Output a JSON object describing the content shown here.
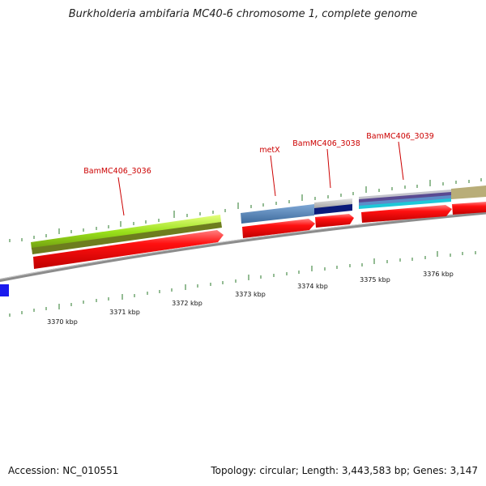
{
  "title": "Burkholderia ambifaria MC40-6 chromosome 1, complete genome",
  "footer": {
    "accession": "Accession: NC_010551",
    "topology": "Topology: circular; Length: 3,443,583 bp; Genes: 3,147"
  },
  "colors": {
    "backbone": "#8c8c8c",
    "cds_forward": "#ff0000",
    "tick": "#2a7a2a",
    "label": "#cc0000"
  },
  "scale_labels": [
    "3370 kbp",
    "3371 kbp",
    "3372 kbp",
    "3373 kbp",
    "3374 kbp",
    "3375 kbp",
    "3376 kbp"
  ],
  "gene_labels": [
    "BamMC406_3036",
    "metX",
    "BamMC406_3038",
    "BamMC406_3039"
  ]
}
